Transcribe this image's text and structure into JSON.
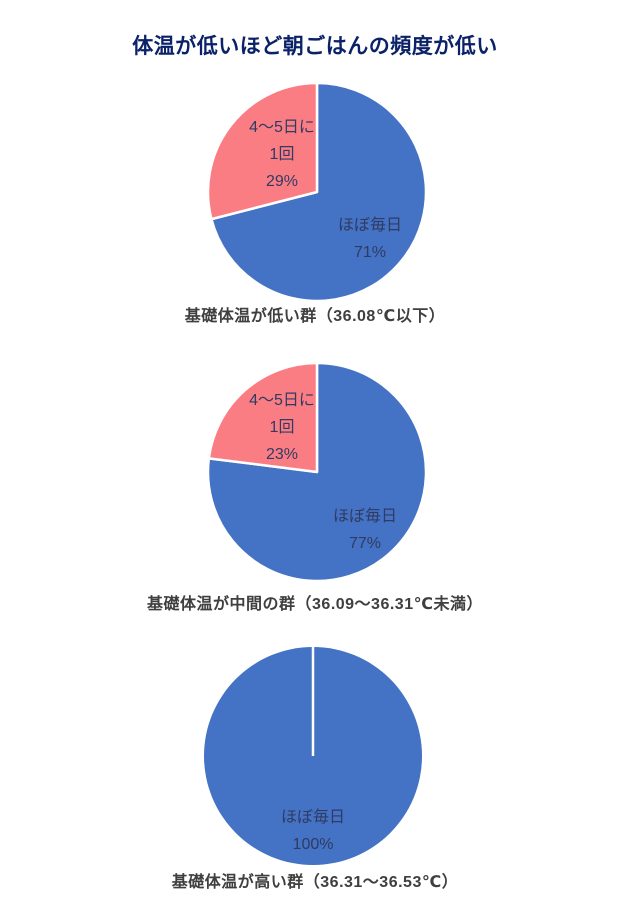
{
  "page": {
    "title": "体温が低いほど朝ごはんの頻度が低い"
  },
  "colors": {
    "blue": "#4472C4",
    "pink": "#FB7D84",
    "title_text": "#0B2268",
    "slice_label_text": "#2F3B63",
    "caption_text": "#3F3F3F",
    "slice_border": "#FFFFFF",
    "background": "#FFFFFF"
  },
  "chart_data": [
    {
      "type": "pie",
      "title": "基礎体温が低い群（36.08℃以下）",
      "start_angle_deg": 0,
      "direction": "clockwise",
      "legend_position": "none",
      "slices": [
        {
          "label": "ほぼ毎日",
          "value": 71,
          "unit": "%",
          "color": "#4472C4",
          "label_lines": [
            "ほぼ毎日",
            "71%"
          ]
        },
        {
          "label": "4～5日に1回",
          "value": 29,
          "unit": "%",
          "color": "#FB7D84",
          "label_lines": [
            "4～5日に",
            "1回",
            "29%"
          ]
        }
      ]
    },
    {
      "type": "pie",
      "title": "基礎体温が中間の群（36.09～36.31℃未満）",
      "start_angle_deg": 0,
      "direction": "clockwise",
      "legend_position": "none",
      "slices": [
        {
          "label": "ほぼ毎日",
          "value": 77,
          "unit": "%",
          "color": "#4472C4",
          "label_lines": [
            "ほぼ毎日",
            "77%"
          ]
        },
        {
          "label": "4～5日に1回",
          "value": 23,
          "unit": "%",
          "color": "#FB7D84",
          "label_lines": [
            "4～5日に",
            "1回",
            "23%"
          ]
        }
      ]
    },
    {
      "type": "pie",
      "title": "基礎体温が高い群（36.31～36.53℃）",
      "start_angle_deg": 0,
      "direction": "clockwise",
      "legend_position": "none",
      "slices": [
        {
          "label": "ほぼ毎日",
          "value": 100,
          "unit": "%",
          "color": "#4472C4",
          "label_lines": [
            "ほぼ毎日",
            "100%"
          ]
        }
      ]
    }
  ]
}
